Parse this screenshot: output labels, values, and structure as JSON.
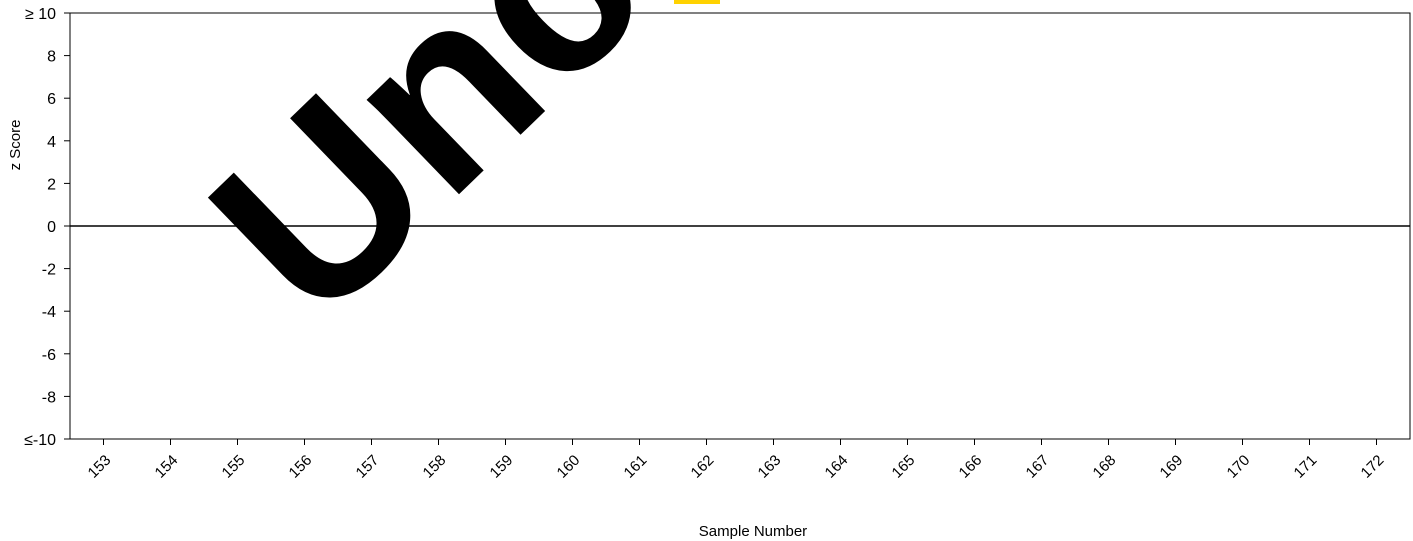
{
  "chart_data": {
    "type": "scatter",
    "title": "",
    "xlabel": "Sample Number",
    "ylabel": "z Score",
    "xlim": [
      152.5,
      172.5
    ],
    "ylim": [
      -10,
      10
    ],
    "x_ticks": [
      153,
      154,
      155,
      156,
      157,
      158,
      159,
      160,
      161,
      162,
      163,
      164,
      165,
      166,
      167,
      168,
      169,
      170,
      171,
      172
    ],
    "y_ticks": [
      {
        "value": 10,
        "label": "≥ 10"
      },
      {
        "value": 8,
        "label": "8"
      },
      {
        "value": 6,
        "label": "6"
      },
      {
        "value": 4,
        "label": "4"
      },
      {
        "value": 2,
        "label": "2"
      },
      {
        "value": 0,
        "label": "0"
      },
      {
        "value": -2,
        "label": "-2"
      },
      {
        "value": -4,
        "label": "-4"
      },
      {
        "value": -6,
        "label": "-6"
      },
      {
        "value": -8,
        "label": "-8"
      },
      {
        "value": -10,
        "label": "≤-10"
      }
    ],
    "reference_lines": [
      {
        "y": 0
      }
    ],
    "series": [],
    "grid": false,
    "colors": {
      "axis": "#000000",
      "marker": "#ffd200"
    }
  },
  "watermark": {
    "text": "Uncontrolled"
  }
}
